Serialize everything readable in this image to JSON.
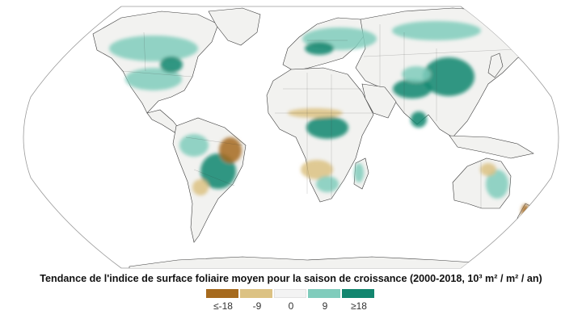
{
  "map": {
    "caption": "Tendance de l'indice de surface foliaire moyen pour la saison de croissance (2000-2018, 10³ m² / m² / an)",
    "projection": "robinson",
    "background_color": "#ffffff",
    "ocean_color": "#ffffff",
    "land_base_color": "#f2f2f0",
    "border_color": "#3a3a3a"
  },
  "legend": {
    "classes": [
      {
        "label": "≤-18",
        "color": "#a66a1e"
      },
      {
        "label": "-9",
        "color": "#dcc283"
      },
      {
        "label": "0",
        "color": "#f3f3f3"
      },
      {
        "label": "9",
        "color": "#80ccbc"
      },
      {
        "label": "≥18",
        "color": "#12866f"
      }
    ]
  }
}
